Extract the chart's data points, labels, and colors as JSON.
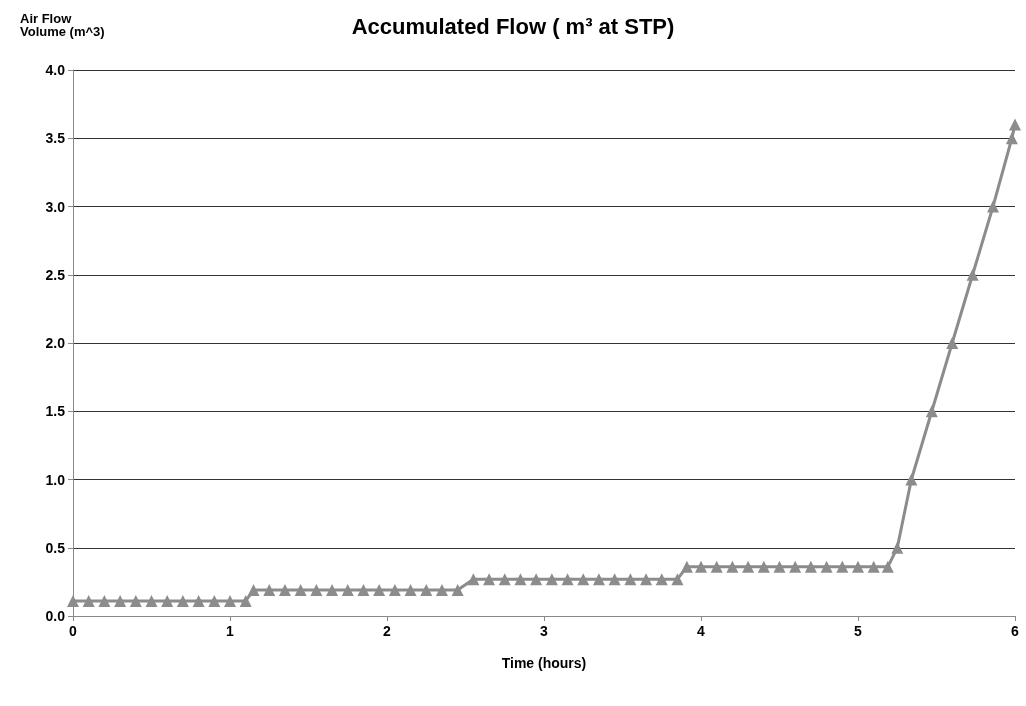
{
  "chart_data": {
    "type": "line",
    "title": "Accumulated Flow ( m³ at STP)",
    "xlabel": "Time (hours)",
    "ylabel": "Air Flow Volume (m^3)",
    "xlim": [
      0,
      6
    ],
    "xticks": [
      0,
      1,
      2,
      3,
      4,
      5,
      6
    ],
    "ylim": [
      0,
      4
    ],
    "yticks": [
      {
        "value": 0,
        "label": "0.0"
      },
      {
        "value": 0.5,
        "label": "0.5"
      },
      {
        "value": 1,
        "label": "1.0"
      },
      {
        "value": 1.5,
        "label": "1.5"
      },
      {
        "value": 2,
        "label": "2.0"
      },
      {
        "value": 2.5,
        "label": "2.5"
      },
      {
        "value": 3,
        "label": "3.0"
      },
      {
        "value": 3.5,
        "label": "3.5"
      },
      {
        "value": 4,
        "label": "4.0"
      }
    ],
    "grid": "y",
    "marker": "triangle",
    "line_style": "solid",
    "series": [
      {
        "color": "#8c8c8c",
        "x": [
          0,
          0.1,
          0.2,
          0.3,
          0.4,
          0.5,
          0.6,
          0.7,
          0.8,
          0.9,
          1.0,
          1.1,
          1.15,
          1.25,
          1.35,
          1.45,
          1.55,
          1.65,
          1.75,
          1.85,
          1.95,
          2.05,
          2.15,
          2.25,
          2.35,
          2.45,
          2.55,
          2.65,
          2.75,
          2.85,
          2.95,
          3.05,
          3.15,
          3.25,
          3.35,
          3.45,
          3.55,
          3.65,
          3.75,
          3.85,
          3.91,
          4.0,
          4.1,
          4.2,
          4.3,
          4.4,
          4.5,
          4.6,
          4.7,
          4.8,
          4.9,
          5.0,
          5.1,
          5.19,
          5.25,
          5.34,
          5.47,
          5.6,
          5.73,
          5.86,
          5.98,
          6.0
        ],
        "values": [
          0.11,
          0.11,
          0.11,
          0.11,
          0.11,
          0.11,
          0.11,
          0.11,
          0.11,
          0.11,
          0.11,
          0.11,
          0.19,
          0.19,
          0.19,
          0.19,
          0.19,
          0.19,
          0.19,
          0.19,
          0.19,
          0.19,
          0.19,
          0.19,
          0.19,
          0.19,
          0.27,
          0.27,
          0.27,
          0.27,
          0.27,
          0.27,
          0.27,
          0.27,
          0.27,
          0.27,
          0.27,
          0.27,
          0.27,
          0.27,
          0.36,
          0.36,
          0.36,
          0.36,
          0.36,
          0.36,
          0.36,
          0.36,
          0.36,
          0.36,
          0.36,
          0.36,
          0.36,
          0.36,
          0.5,
          1.0,
          1.5,
          2.0,
          2.5,
          3.0,
          3.5,
          3.6
        ]
      }
    ]
  }
}
